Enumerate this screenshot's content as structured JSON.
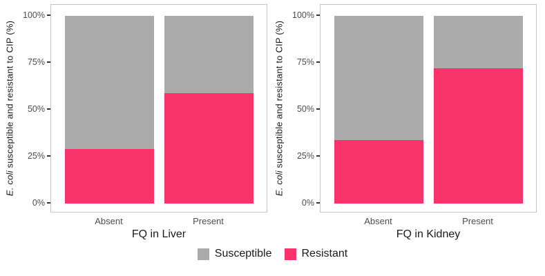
{
  "colors": {
    "susceptible": "#ABABAB",
    "resistant": "#F8336A",
    "panel_border": "#C6C6C6",
    "tick_text": "#4D4D4D",
    "tick_mark": "#333333"
  },
  "chart_data": [
    {
      "type": "bar",
      "stacked": true,
      "categories": [
        "Absent",
        "Present"
      ],
      "series": [
        {
          "name": "Susceptible",
          "values": [
            71,
            41
          ],
          "color": "#ABABAB"
        },
        {
          "name": "Resistant",
          "values": [
            29,
            59
          ],
          "color": "#F8336A"
        }
      ],
      "xlabel": "FQ in Liver",
      "ylabel": "E. coli susceptible and resistant to CIP (%)",
      "ylabel_parts": {
        "italic": "E. coli",
        "rest": " susceptible and resistant to CIP (%)"
      },
      "ylim": [
        0,
        100
      ],
      "yticks": [
        {
          "value": 0,
          "label": "0%"
        },
        {
          "value": 25,
          "label": "25%"
        },
        {
          "value": 50,
          "label": "50%"
        },
        {
          "value": 75,
          "label": "75%"
        },
        {
          "value": 100,
          "label": "100%"
        }
      ],
      "grid": false,
      "legend_position": "bottom"
    },
    {
      "type": "bar",
      "stacked": true,
      "categories": [
        "Absent",
        "Present"
      ],
      "series": [
        {
          "name": "Susceptible",
          "values": [
            66,
            28
          ],
          "color": "#ABABAB"
        },
        {
          "name": "Resistant",
          "values": [
            34,
            72
          ],
          "color": "#F8336A"
        }
      ],
      "xlabel": "FQ in Kidney",
      "ylabel": "E. coli susceptible and resistant to CIP (%)",
      "ylabel_parts": {
        "italic": "E. coli",
        "rest": " susceptible and resistant to CIP (%)"
      },
      "ylim": [
        0,
        100
      ],
      "yticks": [
        {
          "value": 0,
          "label": "0%"
        },
        {
          "value": 25,
          "label": "25%"
        },
        {
          "value": 50,
          "label": "50%"
        },
        {
          "value": 75,
          "label": "75%"
        },
        {
          "value": 100,
          "label": "100%"
        }
      ],
      "grid": false,
      "legend_position": "bottom"
    }
  ],
  "legend": {
    "items": [
      {
        "label": "Susceptible",
        "color": "#ABABAB"
      },
      {
        "label": "Resistant",
        "color": "#F8336A"
      }
    ]
  }
}
